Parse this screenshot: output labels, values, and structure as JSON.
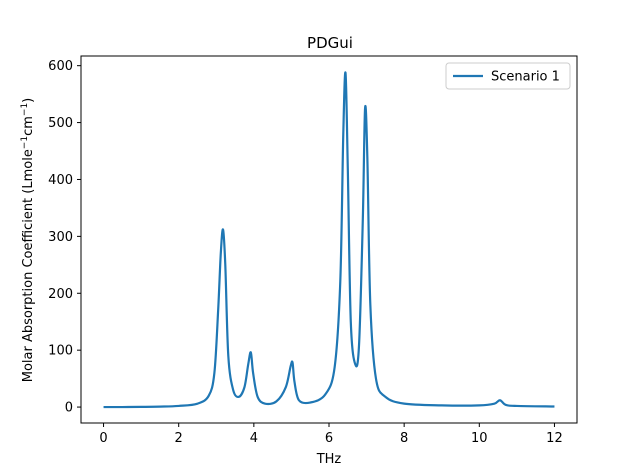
{
  "chart_data": {
    "type": "line",
    "title": "PDGui",
    "xlabel": "THz",
    "ylabel_main": "Molar Absorption Coefficient (Lmole",
    "ylabel_sup1": "−1",
    "ylabel_mid": "cm",
    "ylabel_sup2": "−1",
    "ylabel_end": ")",
    "xlim": [
      -0.6,
      12.6
    ],
    "ylim": [
      -28,
      617
    ],
    "xticks": [
      0,
      2,
      4,
      6,
      8,
      10,
      12
    ],
    "yticks": [
      0,
      100,
      200,
      300,
      400,
      500,
      600
    ],
    "legend_position": "upper-right",
    "series": [
      {
        "name": "Scenario 1",
        "color": "#1f77b4",
        "x": [
          0.0,
          0.5,
          1.0,
          1.5,
          2.0,
          2.5,
          2.8,
          2.95,
          3.05,
          3.12,
          3.18,
          3.24,
          3.32,
          3.45,
          3.6,
          3.75,
          3.85,
          3.92,
          3.98,
          4.1,
          4.3,
          4.6,
          4.85,
          4.98,
          5.03,
          5.08,
          5.2,
          5.5,
          5.9,
          6.15,
          6.3,
          6.38,
          6.44,
          6.5,
          6.58,
          6.7,
          6.8,
          6.9,
          6.96,
          7.02,
          7.1,
          7.25,
          7.5,
          8.0,
          9.0,
          10.0,
          10.4,
          10.55,
          10.7,
          11.0,
          12.0
        ],
        "y": [
          0,
          0,
          0.3,
          0.8,
          2,
          6,
          20,
          60,
          170,
          270,
          312,
          250,
          90,
          30,
          18,
          35,
          75,
          96,
          60,
          18,
          6,
          10,
          35,
          72,
          78,
          45,
          12,
          8,
          22,
          70,
          220,
          480,
          587,
          420,
          150,
          75,
          110,
          330,
          525,
          440,
          180,
          50,
          18,
          6,
          3,
          3,
          6,
          12,
          4,
          2,
          1
        ]
      }
    ]
  }
}
